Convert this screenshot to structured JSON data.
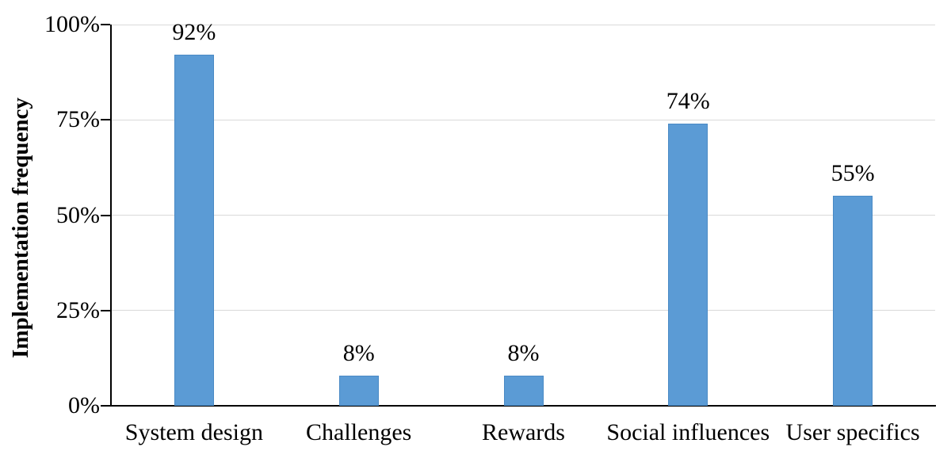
{
  "chart_data": {
    "type": "bar",
    "categories": [
      "System design",
      "Challenges",
      "Rewards",
      "Social influences",
      "User specifics"
    ],
    "values": [
      92,
      8,
      8,
      74,
      55
    ],
    "data_labels": [
      "92%",
      "8%",
      "8%",
      "74%",
      "55%"
    ],
    "title": "",
    "xlabel": "",
    "ylabel": "Implementation frequency",
    "ylim": [
      0,
      100
    ],
    "yticks": [
      0,
      25,
      50,
      75,
      100
    ],
    "ytick_labels": [
      "0%",
      "25%",
      "50%",
      "75%",
      "100%"
    ],
    "grid": "horizontal",
    "legend": "none",
    "bar_color": "#5B9BD5",
    "bar_border_color": "#4A8AC5",
    "gridline_color": "#D9D9D9",
    "axis_color": "#000000",
    "text_color": "#000000"
  }
}
